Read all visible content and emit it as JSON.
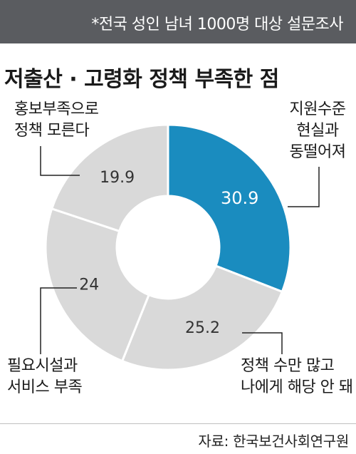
{
  "header": {
    "note": "*전국 성인 남녀 1000명 대상 설문조사",
    "bar_color": "#5a5c60"
  },
  "source": "자료: 한국보건사회연구원",
  "chart_data": {
    "type": "pie",
    "title": "저출산 · 고령화 정책 부족한 점",
    "donut": true,
    "slices": [
      {
        "label_lines": [
          "지원수준",
          "현실과",
          "동떨어져"
        ],
        "value": 30.9,
        "value_label": "30.9",
        "color": "#1a8cbf",
        "value_color": "#ffffff"
      },
      {
        "label_lines": [
          "정책 수만 많고",
          "나에게 해당 안 돼"
        ],
        "value": 25.2,
        "value_label": "25.2",
        "color": "#d9d9d9",
        "value_color": "#333333"
      },
      {
        "label_lines": [
          "필요시설과",
          "서비스 부족"
        ],
        "value": 24,
        "value_label": "24",
        "color": "#d9d9d9",
        "value_color": "#333333"
      },
      {
        "label_lines": [
          "홍보부족으로",
          "정책 모른다"
        ],
        "value": 19.9,
        "value_label": "19.9",
        "color": "#d9d9d9",
        "value_color": "#333333"
      }
    ]
  }
}
